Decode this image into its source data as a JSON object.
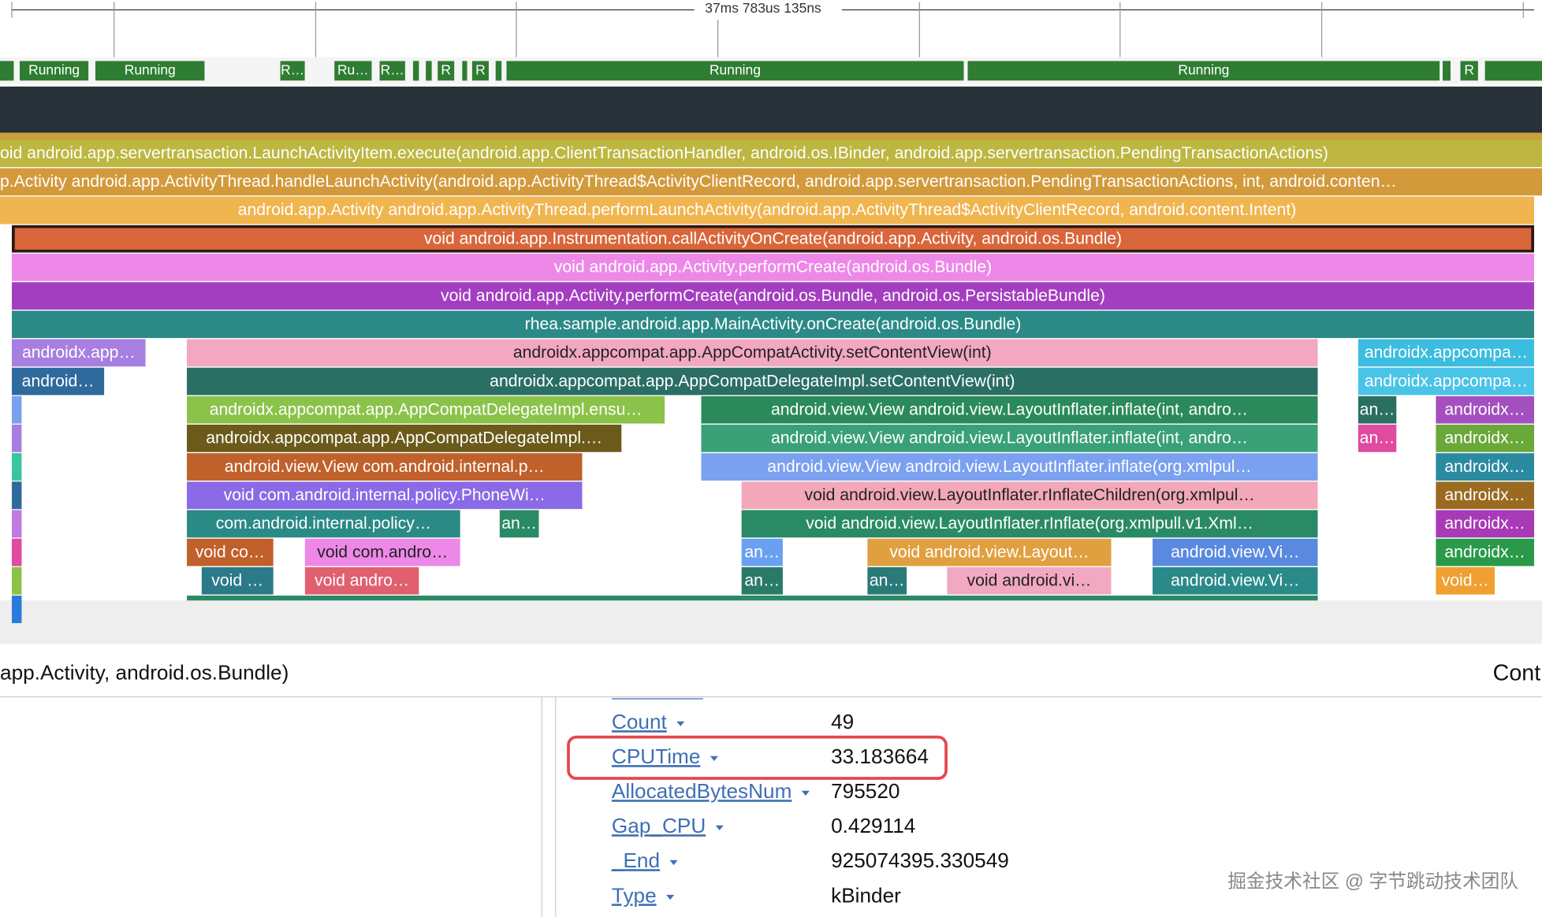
{
  "timeline": {
    "label": "37ms 783us 135ns"
  },
  "thread_states": [
    "Running",
    "Running",
    "R…",
    "Ru…",
    "R…",
    "R",
    "R",
    "Running",
    "Running",
    "R"
  ],
  "flame_rows": [
    [
      "oid android.app.servertransaction.LaunchActivityItem.execute(android.app.ClientTransactionHandler, android.os.IBinder, android.app.servertransaction.PendingTransactionActions)"
    ],
    [
      "p.Activity android.app.ActivityThread.handleLaunchActivity(android.app.ActivityThread$ActivityClientRecord, android.app.servertransaction.PendingTransactionActions, int, android.conten…"
    ],
    [
      "android.app.Activity android.app.ActivityThread.performLaunchActivity(android.app.ActivityThread$ActivityClientRecord, android.content.Intent)"
    ],
    [
      "void android.app.Instrumentation.callActivityOnCreate(android.app.Activity, android.os.Bundle)"
    ],
    [
      "void android.app.Activity.performCreate(android.os.Bundle)"
    ],
    [
      "void android.app.Activity.performCreate(android.os.Bundle, android.os.PersistableBundle)"
    ],
    [
      "rhea.sample.android.app.MainActivity.onCreate(android.os.Bundle)"
    ],
    [
      "androidx.app…",
      "androidx.appcompat.app.AppCompatActivity.setContentView(int)",
      "androidx.appcompa…"
    ],
    [
      "android…",
      "androidx.appcompat.app.AppCompatDelegateImpl.setContentView(int)",
      "androidx.appcompa…"
    ],
    [
      "androidx.appcompat.app.AppCompatDelegateImpl.ensu…",
      "android.view.View android.view.LayoutInflater.inflate(int, andro…",
      "an…",
      "androidx…"
    ],
    [
      "androidx.appcompat.app.AppCompatDelegateImpl.…",
      "android.view.View android.view.LayoutInflater.inflate(int, andro…",
      "an…",
      "androidx…"
    ],
    [
      "android.view.View com.android.internal.p…",
      "android.view.View android.view.LayoutInflater.inflate(org.xmlpul…",
      "androidx…"
    ],
    [
      "void com.android.internal.policy.PhoneWi…",
      "void android.view.LayoutInflater.rInflateChildren(org.xmlpul…",
      "androidx…"
    ],
    [
      "com.android.internal.policy…",
      "an…",
      "void android.view.LayoutInflater.rInflate(org.xmlpull.v1.Xml…",
      "androidx…"
    ],
    [
      "void co…",
      "void com.andro…",
      "an…",
      "void android.view.Layout…",
      "android.view.Vi…",
      "androidx…"
    ],
    [
      "void …",
      "void andro…",
      "an…",
      "an…",
      "void android.vi…",
      "android.view.Vi…",
      "void…"
    ]
  ],
  "details": {
    "title": "app.Activity, android.os.Bundle)",
    "right_title": "Cont",
    "args": [
      {
        "key": "Count",
        "value": "49"
      },
      {
        "key": "CPUTime",
        "value": "33.183664"
      },
      {
        "key": "AllocatedBytesNum",
        "value": "795520"
      },
      {
        "key": "Gap_CPU",
        "value": "0.429114"
      },
      {
        "key": "_End",
        "value": "925074395.330549"
      },
      {
        "key": "Type",
        "value": "kBinder"
      }
    ]
  },
  "watermark": "掘金技术社区 @ 字节跳动技术团队"
}
